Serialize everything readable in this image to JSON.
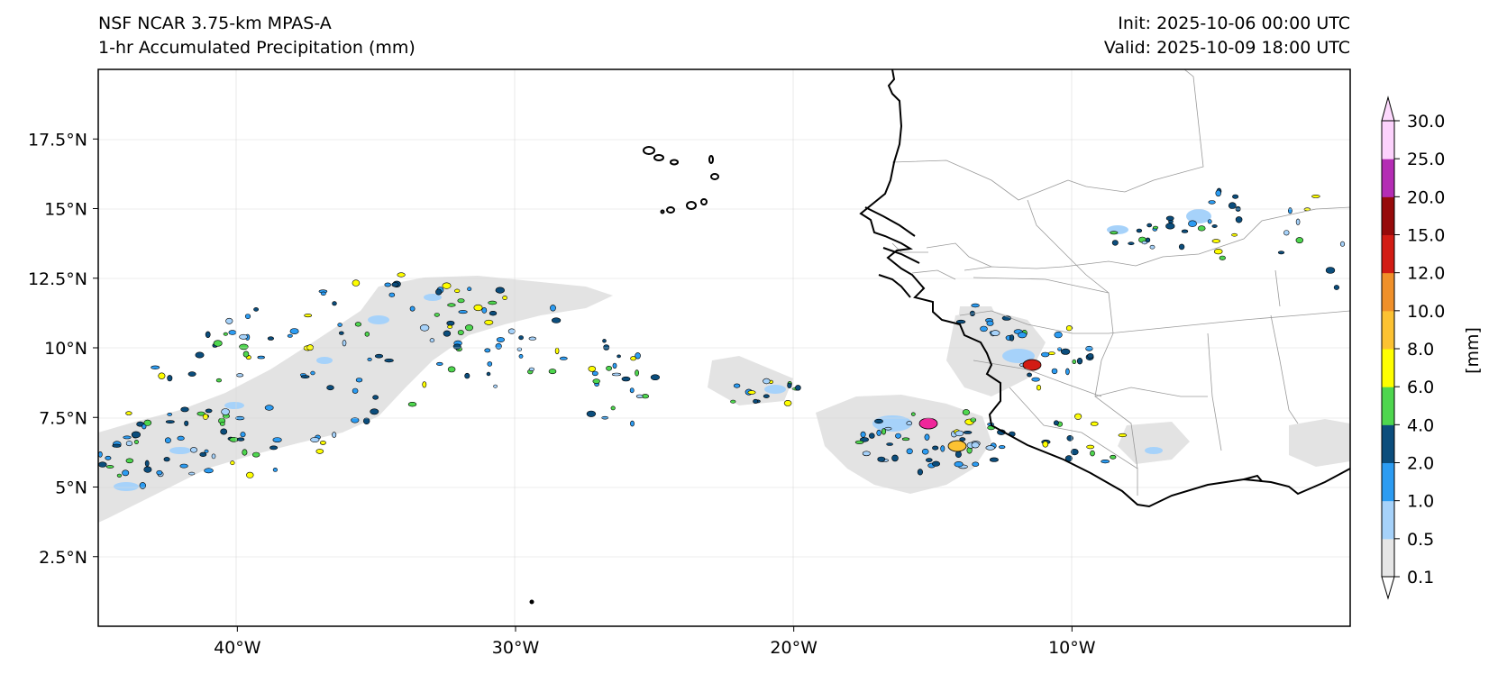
{
  "header": {
    "model": "NSF NCAR 3.75-km MPAS-A",
    "field": "1-hr Accumulated Precipitation (mm)",
    "init": "Init: 2025-10-06 00:00 UTC",
    "valid": "Valid: 2025-10-09 18:00 UTC"
  },
  "map": {
    "lon_range": [
      -45,
      0
    ],
    "lat_range": [
      0,
      20
    ],
    "lon_ticks": [
      "40°W",
      "30°W",
      "20°W",
      "10°W"
    ],
    "lat_ticks": [
      "2.5°N",
      "5°N",
      "7.5°N",
      "10°N",
      "12.5°N",
      "15°N",
      "17.5°N"
    ]
  },
  "colorbar": {
    "label": "[mm]",
    "ticks": [
      "0.1",
      "0.5",
      "1.0",
      "2.0",
      "4.0",
      "6.0",
      "8.0",
      "10.0",
      "12.0",
      "15.0",
      "20.0",
      "25.0",
      "30.0"
    ],
    "colors": [
      "#e6e6e6",
      "#a6d2fa",
      "#2c9cf2",
      "#0b4d7c",
      "#4ed64e",
      "#fefe00",
      "#fcc232",
      "#f0902a",
      "#d21c14",
      "#960a0a",
      "#b42cb4",
      "#fcd2fc"
    ]
  }
}
